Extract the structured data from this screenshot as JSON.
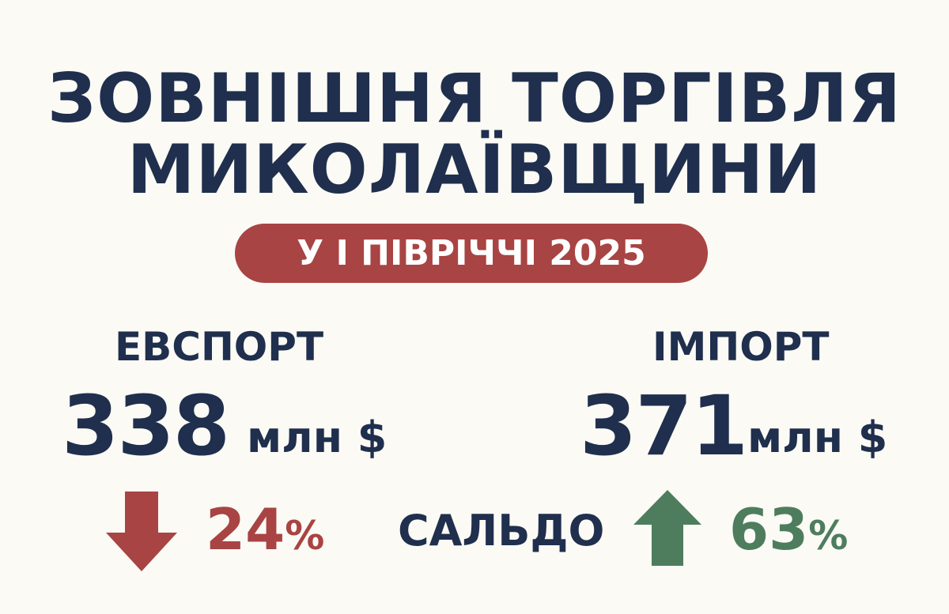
{
  "title": {
    "line1": "ЗОВНІШНЯ ТОРГІВЛЯ",
    "line2": "МИКОЛАЇВЩИНИ"
  },
  "period_badge": "У І ПІВРІЧЧІ 2025",
  "export": {
    "label": "ЕВСПОРТ",
    "value": "338",
    "unit": "млн $",
    "change": "24",
    "change_unit": "%",
    "direction": "down",
    "icon": "arrow-down-icon"
  },
  "import": {
    "label": "ІМПОРТ",
    "value": "371",
    "unit": "млн $",
    "change": "63",
    "change_unit": "%",
    "direction": "up",
    "icon": "arrow-up-icon"
  },
  "balance_label": "САЛЬДО",
  "colors": {
    "background": "#fbfaf5",
    "navy": "#1f2f4d",
    "red": "#a84443",
    "green": "#4e7d5e"
  }
}
